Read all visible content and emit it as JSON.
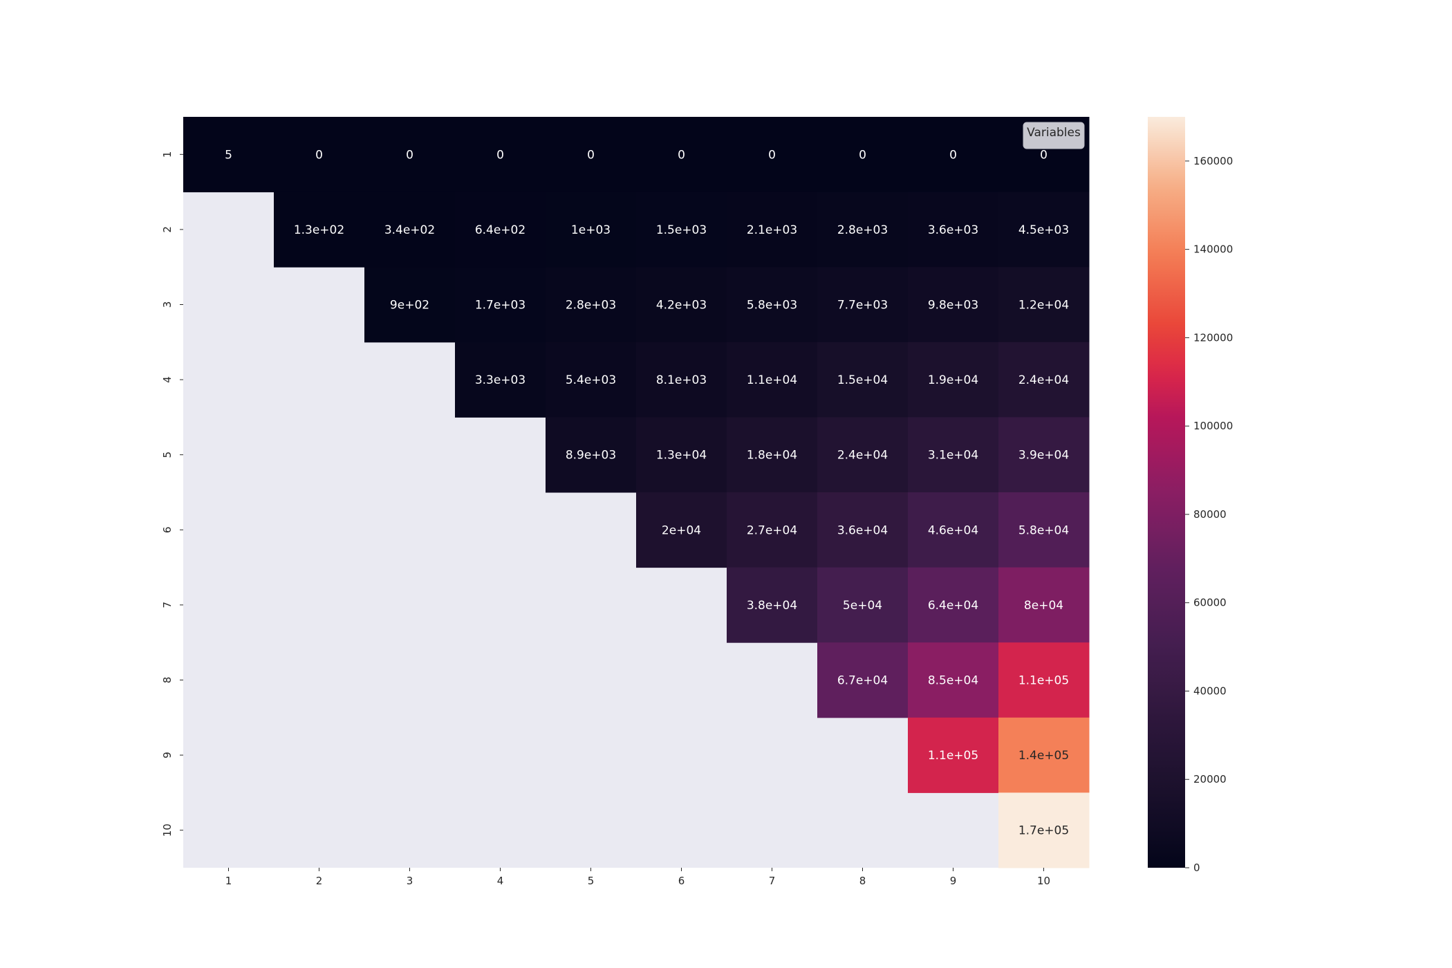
{
  "chart_data": {
    "type": "heatmap",
    "title": "",
    "xlabel": "",
    "ylabel": "",
    "x_categories": [
      "1",
      "2",
      "3",
      "4",
      "5",
      "6",
      "7",
      "8",
      "9",
      "10"
    ],
    "y_categories": [
      "1",
      "2",
      "3",
      "4",
      "5",
      "6",
      "7",
      "8",
      "9",
      "10"
    ],
    "legend": {
      "label": "Variables",
      "placement": "top-right"
    },
    "colorbar": {
      "min": 0,
      "max": 170000,
      "ticks": [
        0,
        20000,
        40000,
        60000,
        80000,
        100000,
        120000,
        140000,
        160000
      ],
      "tick_labels": [
        "0",
        "20000",
        "40000",
        "60000",
        "80000",
        "100000",
        "120000",
        "140000",
        "160000"
      ]
    },
    "mask_color": "#eaeaf2",
    "colormap": "rocket",
    "values": [
      [
        5,
        0,
        0,
        0,
        0,
        0,
        0,
        0,
        0,
        0
      ],
      [
        null,
        130,
        340,
        640,
        1000,
        1500,
        2100,
        2800,
        3600,
        4500
      ],
      [
        null,
        null,
        900,
        1700,
        2800,
        4200,
        5800,
        7700,
        9800,
        12000
      ],
      [
        null,
        null,
        null,
        3300,
        5400,
        8100,
        11000,
        15000,
        19000,
        24000
      ],
      [
        null,
        null,
        null,
        null,
        8900,
        13000,
        18000,
        24000,
        31000,
        39000
      ],
      [
        null,
        null,
        null,
        null,
        null,
        20000,
        27000,
        36000,
        46000,
        58000
      ],
      [
        null,
        null,
        null,
        null,
        null,
        null,
        38000,
        50000,
        64000,
        80000
      ],
      [
        null,
        null,
        null,
        null,
        null,
        null,
        null,
        67000,
        85000,
        110000
      ],
      [
        null,
        null,
        null,
        null,
        null,
        null,
        null,
        null,
        110000,
        140000
      ],
      [
        null,
        null,
        null,
        null,
        null,
        null,
        null,
        null,
        null,
        170000
      ]
    ],
    "annotations": [
      [
        "5",
        "0",
        "0",
        "0",
        "0",
        "0",
        "0",
        "0",
        "0",
        "0"
      ],
      [
        "",
        "1.3e+02",
        "3.4e+02",
        "6.4e+02",
        "1e+03",
        "1.5e+03",
        "2.1e+03",
        "2.8e+03",
        "3.6e+03",
        "4.5e+03"
      ],
      [
        "",
        "",
        "9e+02",
        "1.7e+03",
        "2.8e+03",
        "4.2e+03",
        "5.8e+03",
        "7.7e+03",
        "9.8e+03",
        "1.2e+04"
      ],
      [
        "",
        "",
        "",
        "3.3e+03",
        "5.4e+03",
        "8.1e+03",
        "1.1e+04",
        "1.5e+04",
        "1.9e+04",
        "2.4e+04"
      ],
      [
        "",
        "",
        "",
        "",
        "8.9e+03",
        "1.3e+04",
        "1.8e+04",
        "2.4e+04",
        "3.1e+04",
        "3.9e+04"
      ],
      [
        "",
        "",
        "",
        "",
        "",
        "2e+04",
        "2.7e+04",
        "3.6e+04",
        "4.6e+04",
        "5.8e+04"
      ],
      [
        "",
        "",
        "",
        "",
        "",
        "",
        "3.8e+04",
        "5e+04",
        "6.4e+04",
        "8e+04"
      ],
      [
        "",
        "",
        "",
        "",
        "",
        "",
        "",
        "6.7e+04",
        "8.5e+04",
        "1.1e+05"
      ],
      [
        "",
        "",
        "",
        "",
        "",
        "",
        "",
        "",
        "1.1e+05",
        "1.4e+05"
      ],
      [
        "",
        "",
        "",
        "",
        "",
        "",
        "",
        "",
        "",
        "1.7e+05"
      ]
    ]
  }
}
